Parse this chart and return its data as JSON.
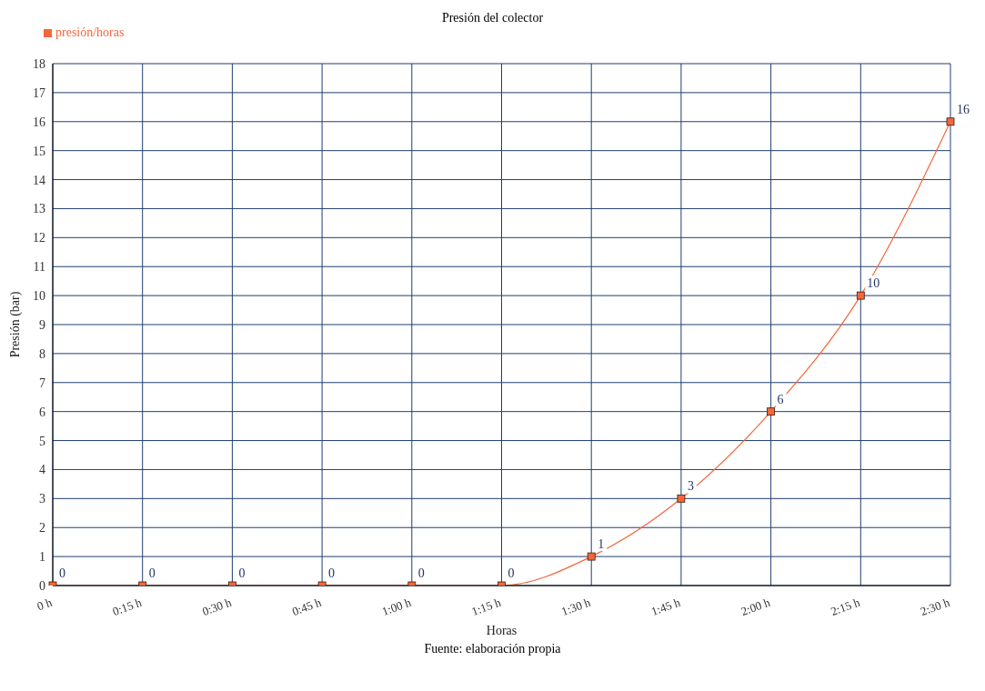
{
  "chart_data": {
    "type": "line",
    "title": "Presión del colector",
    "xlabel": "Horas",
    "ylabel": "Presión (bar)",
    "annotations": [
      "Fuente: elaboración propia"
    ],
    "categories": [
      "0 h",
      "0:15 h",
      "0:30 h",
      "0:45 h",
      "1:00 h",
      "1:15 h",
      "1:30 h",
      "1:45 h",
      "2:00 h",
      "2:15 h",
      "2:30 h"
    ],
    "series": [
      {
        "name": "presión/horas",
        "color": "#f4673a",
        "values": [
          0,
          0,
          0,
          0,
          0,
          0,
          1,
          3,
          6,
          10,
          16
        ]
      }
    ],
    "ylim": [
      0,
      18
    ],
    "yticks": [
      0,
      1,
      2,
      3,
      4,
      5,
      6,
      7,
      8,
      9,
      10,
      11,
      12,
      13,
      14,
      15,
      16,
      17,
      18
    ],
    "grid": true,
    "legend": "top left",
    "marker": "square",
    "line_style": "solid",
    "data_labels": true
  }
}
